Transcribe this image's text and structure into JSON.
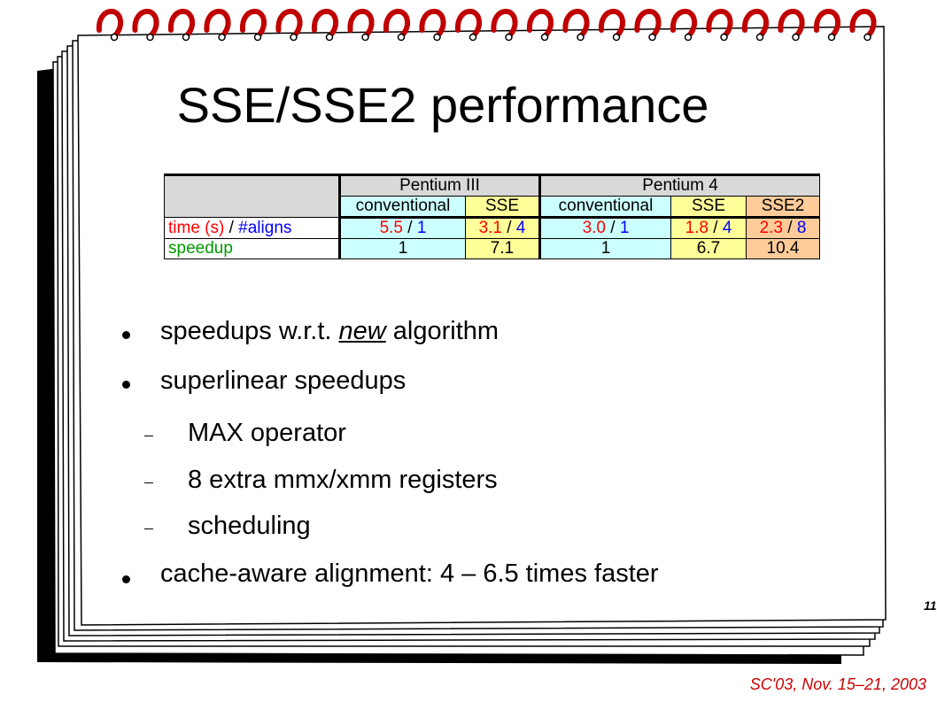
{
  "slide": {
    "title": "SSE/SSE2 performance",
    "page_number": "11",
    "footer": "SC'03, Nov. 15–21, 2003"
  },
  "table": {
    "group_headers": {
      "pentium3": "Pentium III",
      "pentium4": "Pentium 4"
    },
    "sub_headers": {
      "p3_conventional": "conventional",
      "p3_sse": "SSE",
      "p4_conventional": "conventional",
      "p4_sse": "SSE",
      "p4_sse2": "SSE2"
    },
    "row_time": {
      "label_time": "time (s)",
      "label_sep": " / ",
      "label_aligns": "#aligns",
      "p3_conv_time": "5.5",
      "p3_conv_aligns": "1",
      "p3_sse_time": "3.1",
      "p3_sse_aligns": "4",
      "p4_conv_time": "3.0",
      "p4_conv_aligns": "1",
      "p4_sse_time": "1.8",
      "p4_sse_aligns": "4",
      "p4_sse2_time": "2.3",
      "p4_sse2_aligns": "8",
      "sep": " / "
    },
    "row_speedup": {
      "label": "speedup",
      "p3_conv": "1",
      "p3_sse": "7.1",
      "p4_conv": "1",
      "p4_sse": "6.7",
      "p4_sse2": "10.4"
    },
    "colors": {
      "time": "#ff0000",
      "aligns": "#0000ff",
      "speedup": "#009900",
      "cyan": "#ccffff",
      "yellow": "#ffff99",
      "orange": "#ffcc99"
    }
  },
  "bullets": {
    "b1_pre": "speedups w.r.t. ",
    "b1_em": "new",
    "b1_post": " algorithm",
    "b2": "superlinear speedups",
    "sub1": "MAX operator",
    "sub2": "8 extra mmx/xmm registers",
    "sub3": "scheduling",
    "b3": "cache-aware alignment: 4 – 6.5 times faster"
  }
}
